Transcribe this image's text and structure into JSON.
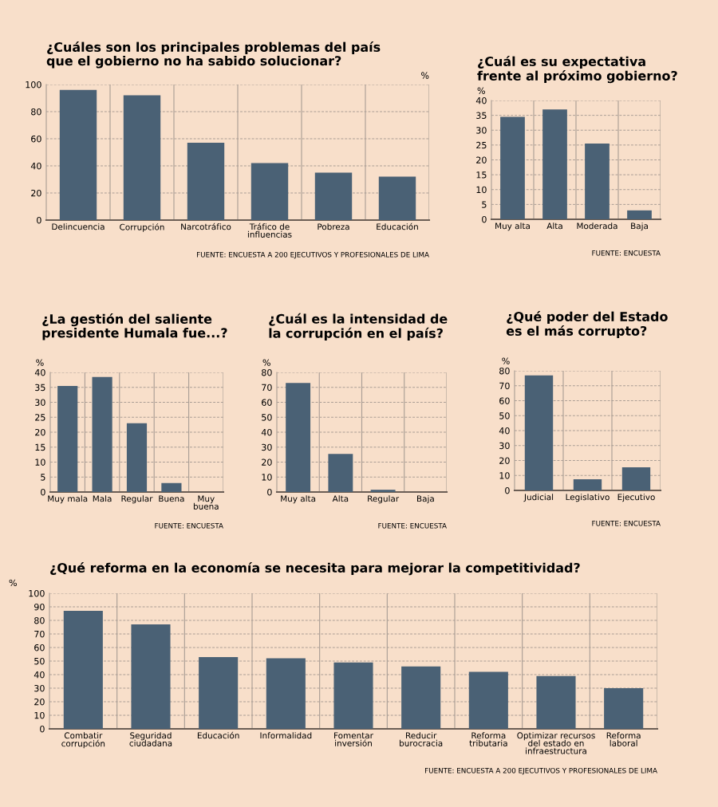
{
  "chart_data": [
    {
      "type": "bar",
      "title": "¿Cuáles son los principales problemas del país\nque el gobierno no ha sabido solucionar?",
      "ylabel": "%",
      "categories": [
        "Delincuencia",
        "Corrupción",
        "Narcotráfico",
        "Tráfico de\ninfluencias",
        "Pobreza",
        "Educación"
      ],
      "values": [
        96,
        92,
        57,
        42,
        35,
        32
      ],
      "color": "#4a6175",
      "ylim": [
        0,
        100
      ],
      "yticks": [
        0,
        20,
        40,
        60,
        80,
        100
      ],
      "grid": true,
      "annotations": [
        "FUENTE: ENCUESTA A 200 EJECUTIVOS Y PROFESIONALES DE LIMA"
      ]
    },
    {
      "type": "bar",
      "title": "¿Cuál es su expectativa\nfrente al próximo gobierno?",
      "ylabel": "%",
      "categories": [
        "Muy alta",
        "Alta",
        "Moderada",
        "Baja"
      ],
      "values": [
        34.5,
        37,
        25.5,
        3
      ],
      "color": "#4a6175",
      "ylim": [
        0,
        40
      ],
      "yticks": [
        0,
        5,
        10,
        15,
        20,
        25,
        30,
        35,
        40
      ],
      "grid": true,
      "annotations": [
        "FUENTE: ENCUESTA"
      ]
    },
    {
      "type": "bar",
      "title": "¿La gestión del saliente\npresidente Humala fue...?",
      "ylabel": "%",
      "categories": [
        "Muy mala",
        "Mala",
        "Regular",
        "Buena",
        "Muy\nbuena"
      ],
      "values": [
        35.5,
        38.5,
        23,
        3,
        0
      ],
      "color": "#4a6175",
      "ylim": [
        0,
        40
      ],
      "yticks": [
        0,
        5,
        10,
        15,
        20,
        25,
        30,
        35,
        40
      ],
      "grid": true,
      "annotations": [
        "FUENTE: ENCUESTA"
      ]
    },
    {
      "type": "bar",
      "title": "¿Cuál es la intensidad de\nla corrupción en el país?",
      "ylabel": "%",
      "categories": [
        "Muy alta",
        "Alta",
        "Regular",
        "Baja"
      ],
      "values": [
        73,
        25.5,
        1.5,
        0
      ],
      "color": "#4a6175",
      "ylim": [
        0,
        80
      ],
      "yticks": [
        0,
        10,
        20,
        30,
        40,
        50,
        60,
        70,
        80
      ],
      "grid": true,
      "annotations": [
        "FUENTE: ENCUESTA"
      ]
    },
    {
      "type": "bar",
      "title": "¿Qué poder del Estado\nes el más corrupto?",
      "ylabel": "%",
      "categories": [
        "Judicial",
        "Legislativo",
        "Ejecutivo"
      ],
      "values": [
        77,
        7.5,
        15.5
      ],
      "color": "#4a6175",
      "ylim": [
        0,
        80
      ],
      "yticks": [
        0,
        10,
        20,
        30,
        40,
        50,
        60,
        70,
        80
      ],
      "grid": true,
      "annotations": [
        "FUENTE: ENCUESTA"
      ]
    },
    {
      "type": "bar",
      "title": "¿Qué reforma en la economía se necesita para mejorar la competitividad?",
      "ylabel": "%",
      "categories": [
        "Combatir\ncorrupción",
        "Seguridad\nciudadana",
        "Educación",
        "Informalidad",
        "Fomentar\ninversión",
        "Reducir\nburocracia",
        "Reforma\ntributaria",
        "Optimizar recursos\ndel estado en\ninfraestructura",
        "Reforma\nlaboral"
      ],
      "values": [
        87,
        77,
        53,
        52,
        49,
        46,
        42,
        39,
        30
      ],
      "color": "#4a6175",
      "ylim": [
        0,
        100
      ],
      "yticks": [
        0,
        10,
        20,
        30,
        40,
        50,
        60,
        70,
        80,
        90,
        100
      ],
      "grid": true,
      "annotations": [
        "FUENTE: ENCUESTA A 200 EJECUTIVOS Y PROFESIONALES DE LIMA"
      ]
    }
  ]
}
